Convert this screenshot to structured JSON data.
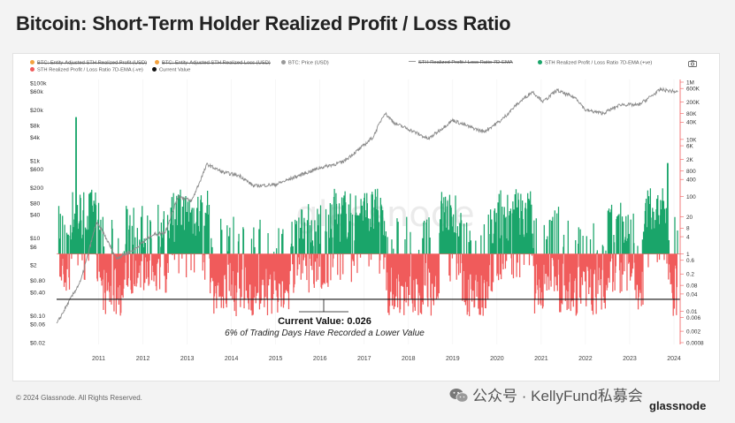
{
  "title": "Bitcoin: Short-Term Holder Realized Profit / Loss Ratio",
  "footer": "© 2024 Glassnode. All Rights Reserved.",
  "brand": "glassnode",
  "wechat_watermark": "公众号 · KellyFund私募会",
  "legend": [
    {
      "label": "BTC: Entity-Adjusted STH Realized Profit (USD)",
      "color": "#f4a340",
      "struck": true
    },
    {
      "label": "BTC: Entity-Adjusted STH Realized Loss (USD)",
      "color": "#f4a340",
      "struck": true
    },
    {
      "label": "BTC: Price (USD)",
      "color": "#999999",
      "struck": false
    },
    {
      "label": "STH Realized Profit / Loss Ratio 7D-EMA",
      "color": "#999999",
      "struck": true,
      "is_line": true
    },
    {
      "label": "STH Realized Profit / Loss Ratio 7D-EMA (+ve)",
      "color": "#1aa56a",
      "struck": false
    },
    {
      "label": "STH Realized Profit / Loss Ratio 7D-EMA (-ve)",
      "color": "#f05b5b",
      "struck": false
    },
    {
      "label": "Current Value",
      "color": "#111111",
      "struck": false
    }
  ],
  "icons": {
    "camera": "camera-icon",
    "wechat": "wechat-icon"
  },
  "colors": {
    "positive": "#1aa56a",
    "negative": "#f05b5b",
    "price": "#8a8a8a",
    "current_line": "#111111"
  },
  "annotation": {
    "value_text": "Current Value: 0.026",
    "sub_text": "6% of Trading Days Have Recorded a Lower Value"
  },
  "chart_data": {
    "type": "line",
    "x_ticks": [
      "2011",
      "2012",
      "2013",
      "2014",
      "2015",
      "2016",
      "2017",
      "2018",
      "2019",
      "2020",
      "2021",
      "2022",
      "2023",
      "2024"
    ],
    "left_axis_ticks": [
      "$100k",
      "$60k",
      "$20k",
      "$8k",
      "$4k",
      "$1k",
      "$600",
      "$200",
      "$80",
      "$40",
      "$10",
      "$6",
      "$2",
      "$0.80",
      "$0.40",
      "$0.10",
      "$0.06",
      "$0.02"
    ],
    "left_axis_scale": "log",
    "right_axis_ticks": [
      "1M",
      "600K",
      "200K",
      "80K",
      "40K",
      "10K",
      "6K",
      "2K",
      "800",
      "400",
      "100",
      "20",
      "8",
      "4",
      "1",
      "0.6",
      "0.2",
      "0.08",
      "0.04",
      "0.01",
      "0.006",
      "0.002",
      "0.0008"
    ],
    "right_axis_scale": "log",
    "price_series": {
      "name": "BTC: Price (USD)",
      "x": [
        2010.55,
        2010.8,
        2011.1,
        2011.45,
        2011.6,
        2011.9,
        2012.3,
        2012.7,
        2013.0,
        2013.3,
        2013.6,
        2013.95,
        2014.3,
        2014.7,
        2015.0,
        2015.5,
        2016.0,
        2016.5,
        2017.0,
        2017.4,
        2017.7,
        2017.96,
        2018.2,
        2018.5,
        2018.95,
        2019.5,
        2019.8,
        2020.2,
        2020.6,
        2020.95,
        2021.3,
        2021.55,
        2021.85,
        2022.3,
        2022.5,
        2022.9,
        2023.3,
        2023.7,
        2024.2,
        2024.6
      ],
      "y": [
        0.06,
        0.2,
        0.8,
        25,
        14,
        3,
        5,
        12,
        14,
        120,
        90,
        800,
        500,
        400,
        220,
        240,
        400,
        650,
        900,
        2000,
        4000,
        17000,
        9000,
        6500,
        3600,
        11000,
        8000,
        5500,
        11000,
        28000,
        60000,
        33000,
        65000,
        40000,
        20000,
        16500,
        28000,
        27000,
        68000,
        58000
      ]
    },
    "current_value": 0.026,
    "current_value_percentile": 6
  }
}
